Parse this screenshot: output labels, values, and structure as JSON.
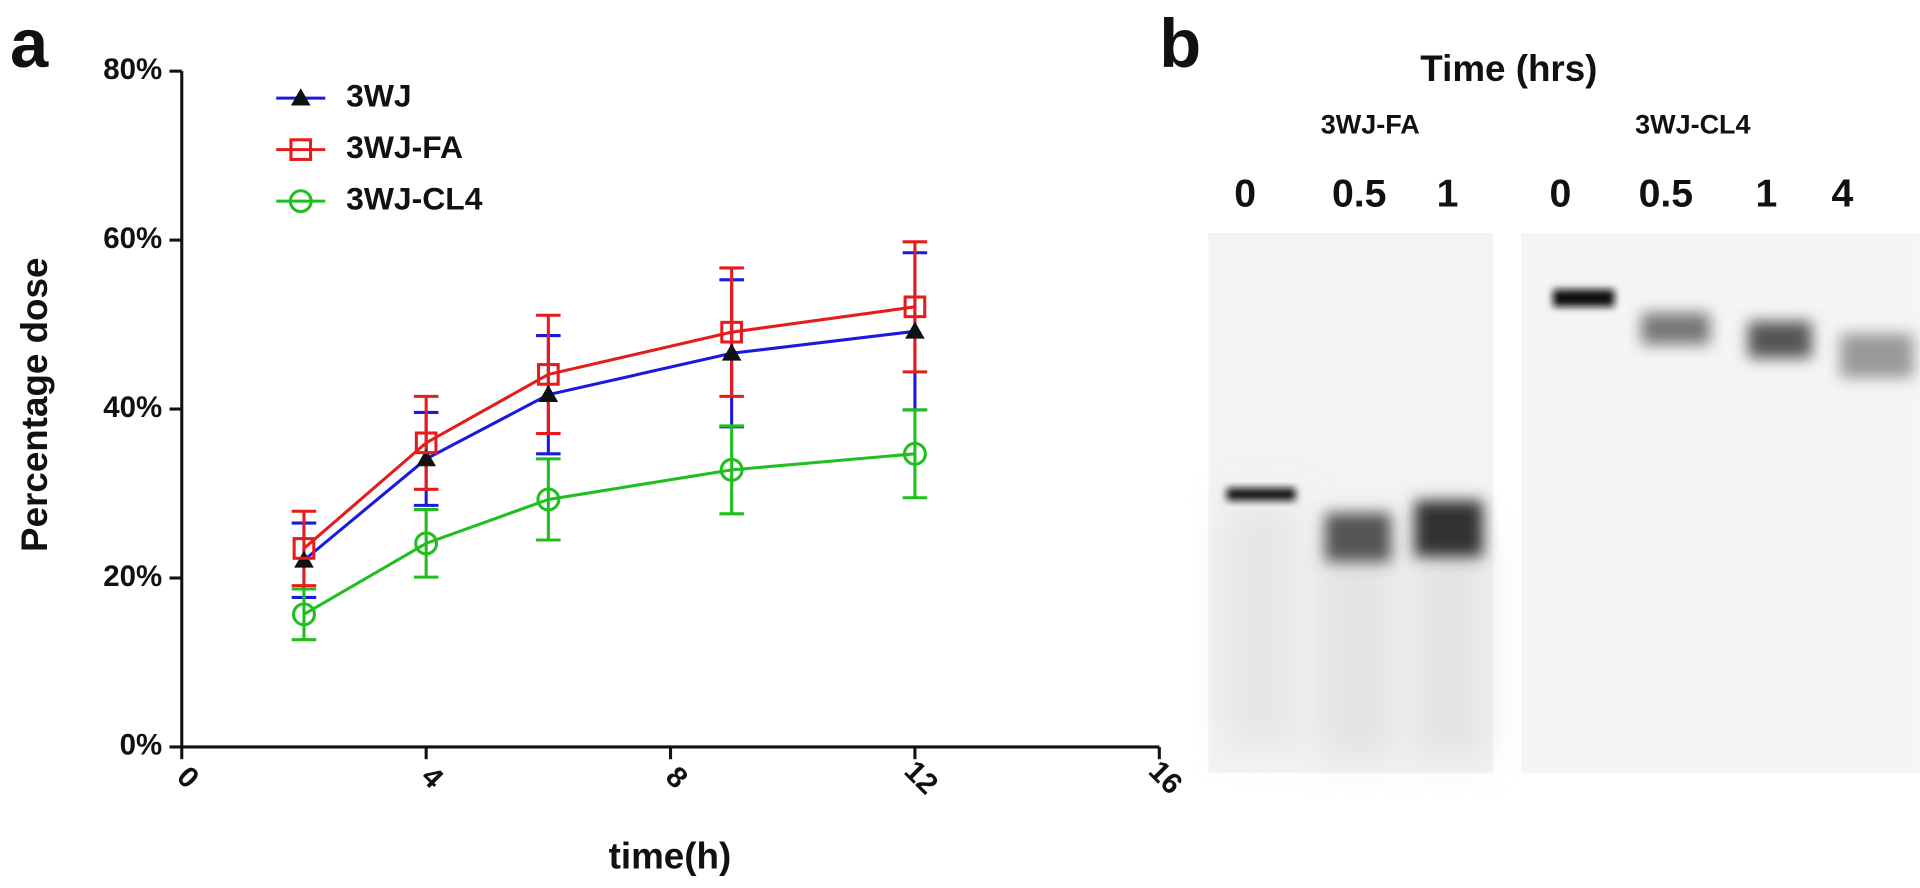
{
  "panels": [
    "a",
    "b"
  ],
  "chart_data": {
    "type": "line",
    "y_label": "Percentage dose",
    "x_label": "time(h)",
    "x": [
      2,
      4,
      6,
      9,
      12
    ],
    "series": [
      {
        "name": "3WJ",
        "color": "#1a1adf",
        "marker": "triangle",
        "values": [
          22.1,
          34.1,
          41.7,
          46.6,
          49.2
        ],
        "errors": [
          4.4,
          5.5,
          7,
          8.7,
          9.3
        ]
      },
      {
        "name": "3WJ-FA",
        "color": "#e51c1c",
        "marker": "square",
        "values": [
          23.5,
          36,
          44.1,
          49.1,
          52.1
        ],
        "errors": [
          4.4,
          5.5,
          7,
          7.6,
          7.7
        ]
      },
      {
        "name": "3WJ-CL4",
        "color": "#1fbf1f",
        "marker": "circle",
        "values": [
          15.7,
          24.1,
          29.3,
          32.8,
          34.7
        ],
        "errors": [
          3,
          4,
          4.8,
          5.2,
          5.2
        ]
      }
    ],
    "xlim": [
      0,
      16
    ],
    "xticks": [
      0,
      4,
      8,
      12,
      16
    ],
    "ylim": [
      0,
      80
    ],
    "yticks": [
      {
        "value": 0,
        "label": "0%"
      },
      {
        "value": 20,
        "label": "20%"
      },
      {
        "value": 40,
        "label": "40%"
      },
      {
        "value": 60,
        "label": "60%"
      },
      {
        "value": 80,
        "label": "80%"
      }
    ],
    "legend": "top-left"
  },
  "gel": {
    "title": "Time (hrs)",
    "groups": [
      {
        "label": "3WJ-FA",
        "lanes": [
          "0",
          "0.5",
          "1"
        ]
      },
      {
        "label": "3WJ-CL4",
        "lanes": [
          "0",
          "0.5",
          "1",
          "4"
        ]
      }
    ]
  }
}
